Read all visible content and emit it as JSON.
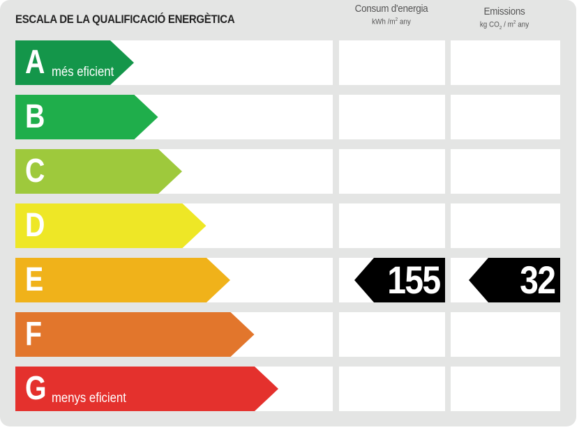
{
  "title": "ESCALA DE LA QUALIFICACIÓ ENERGÈTICA",
  "columns": {
    "consum": {
      "label": "Consum d'energia",
      "unit_prefix": "kWh /m",
      "unit_sup": "2",
      "unit_suffix": " any"
    },
    "emissions": {
      "label": "Emissions",
      "unit_prefix": "kg CO",
      "unit_sub": "2",
      "unit_mid": " / m",
      "unit_sup": "2",
      "unit_suffix": " any"
    }
  },
  "classes": [
    {
      "letter": "A",
      "label": "més eficient",
      "color": "#14964a"
    },
    {
      "letter": "B",
      "label": "",
      "color": "#1fae4b"
    },
    {
      "letter": "C",
      "label": "",
      "color": "#9ec93c"
    },
    {
      "letter": "D",
      "label": "",
      "color": "#eee726"
    },
    {
      "letter": "E",
      "label": "",
      "color": "#f0b21a"
    },
    {
      "letter": "F",
      "label": "",
      "color": "#e2762c"
    },
    {
      "letter": "G",
      "label": "menys eficient",
      "color": "#e4312d"
    }
  ],
  "rating": {
    "class": "E",
    "consum_value": "155",
    "emissions_value": "32",
    "tag_color": "#000000"
  }
}
